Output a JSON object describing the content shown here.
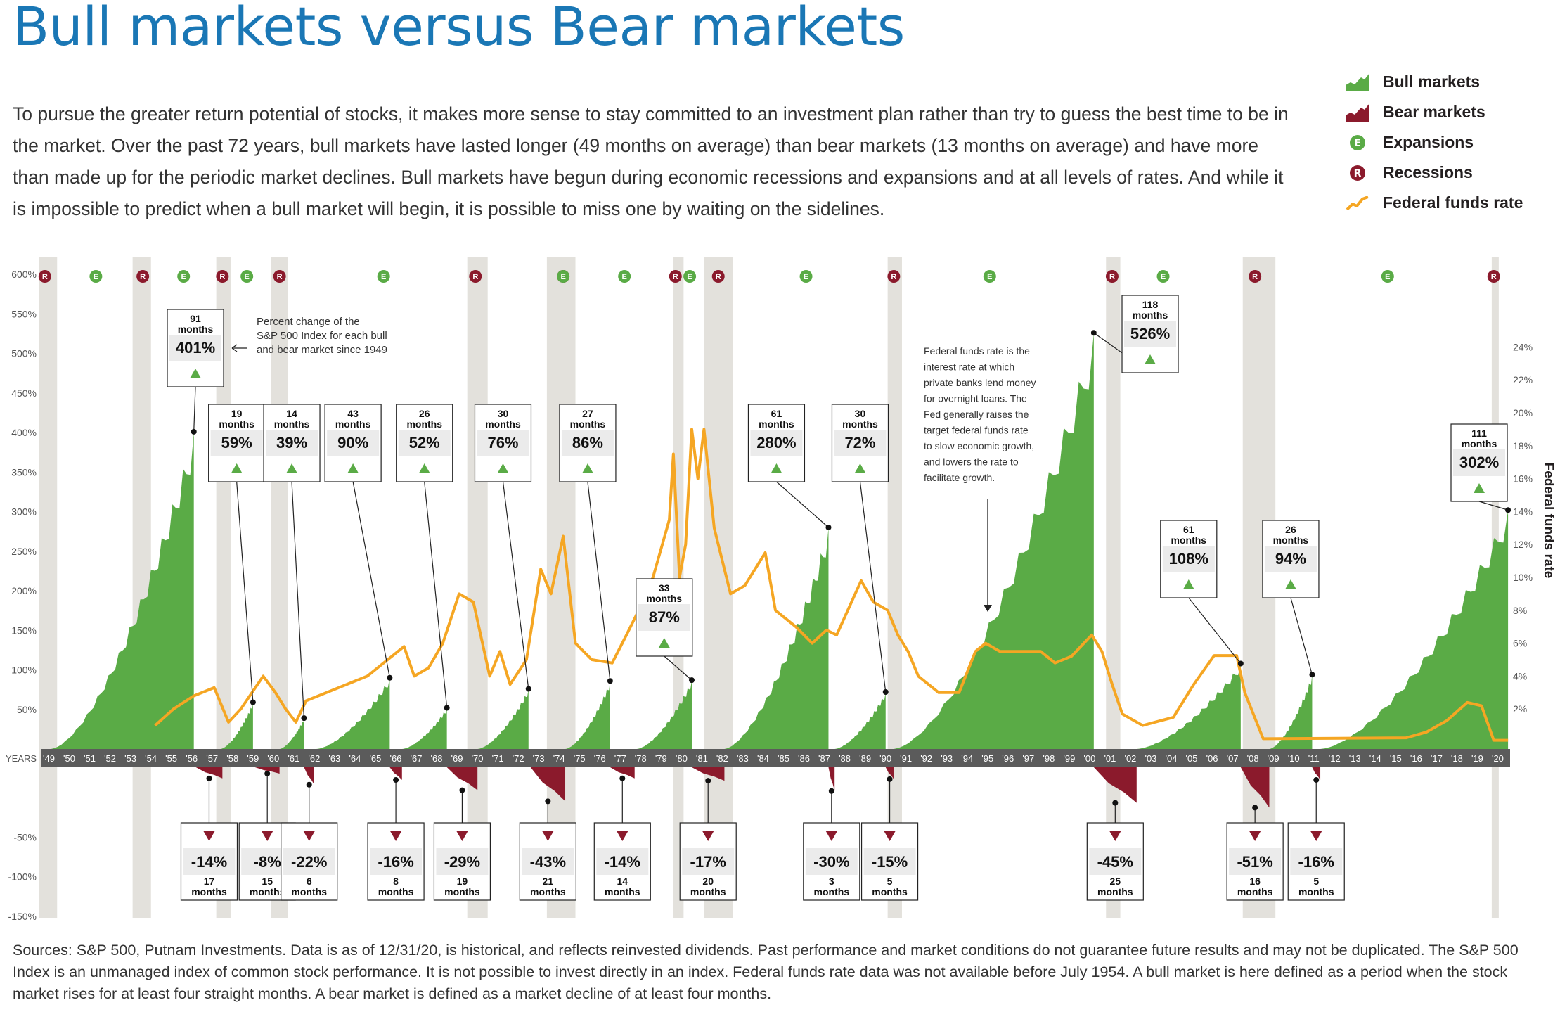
{
  "title": "Bull markets versus Bear markets",
  "intro": "To pursue the greater return potential of stocks, it makes more sense to stay committed to an investment plan rather than try to guess the best time to be in the market. Over the past 72 years, bull markets have lasted longer (49 months on average) than bear markets (13 months on average) and have more than made up for the periodic market declines. Bull markets have begun during economic recessions and expansions and at all levels of rates. And while it is impossible to predict when a bull market will begin, it is possible to miss one by waiting on the sidelines.",
  "legend": [
    {
      "label": "Bull markets",
      "icon": "bull-area-icon",
      "color": "#5aab46"
    },
    {
      "label": "Bear markets",
      "icon": "bear-area-icon",
      "color": "#8b1a2c"
    },
    {
      "label": "Expansions",
      "icon": "expansion-e-icon",
      "color": "#5aab46"
    },
    {
      "label": "Recessions",
      "icon": "recession-r-icon",
      "color": "#8b1a2c"
    },
    {
      "label": "Federal funds rate",
      "icon": "rate-line-icon",
      "color": "#f5a623"
    }
  ],
  "footer": "Sources: S&P 500, Putnam Investments. Data is as of 12/31/20, is historical, and reflects reinvested dividends. Past performance and market conditions do not guarantee future results and may not be duplicated. The S&P 500 Index is an unmanaged index of common stock performance. It is not possible to invest directly in an index. Federal funds rate data was not available before July 1954. A bull market is here defined as a period when the stock market rises for at least four straight months. A bear market is defined as a market decline of at least four months.",
  "chart_data": {
    "type": "area",
    "colors": {
      "bull": "#5aab46",
      "bear": "#8b1a2c",
      "rate": "#f5a623",
      "recession_band": "#e3e1dc",
      "axis_band": "#5b5b5b"
    },
    "left_axis": {
      "ticks": [
        "600%",
        "550%",
        "500%",
        "450%",
        "400%",
        "350%",
        "300%",
        "250%",
        "200%",
        "150%",
        "100%",
        "50%"
      ],
      "negative_ticks": [
        "-50%",
        "-100%",
        "-150%"
      ],
      "ylim": [
        -150,
        600
      ]
    },
    "right_axis": {
      "label": "Federal funds rate",
      "ticks": [
        "24%",
        "22%",
        "20%",
        "18%",
        "16%",
        "14%",
        "12%",
        "10%",
        "8%",
        "6%",
        "4%",
        "2%"
      ],
      "ylim": [
        0,
        24
      ]
    },
    "years_label": "YEARS",
    "years": [
      "'49",
      "'50",
      "'51",
      "'52",
      "'53",
      "'54",
      "'55",
      "'56",
      "'57",
      "'58",
      "'59",
      "'60",
      "'61",
      "'62",
      "'63",
      "'64",
      "'65",
      "'66",
      "'67",
      "'68",
      "'69",
      "'70",
      "'71",
      "'72",
      "'73",
      "'74",
      "'75",
      "'76",
      "'77",
      "'78",
      "'79",
      "'80",
      "'81",
      "'82",
      "'83",
      "'84",
      "'85",
      "'86",
      "'87",
      "'88",
      "'89",
      "'90",
      "'91",
      "'92",
      "'93",
      "'94",
      "'95",
      "'96",
      "'97",
      "'98",
      "'99",
      "'00",
      "'01",
      "'02",
      "'03",
      "'04",
      "'05",
      "'06",
      "'07",
      "'08",
      "'09",
      "'10",
      "'11",
      "'12",
      "'13",
      "'14",
      "'15",
      "'16",
      "'17",
      "'18",
      "'19",
      "'20"
    ],
    "recessions": [
      [
        1948.9,
        1949.8
      ],
      [
        1953.5,
        1954.4
      ],
      [
        1957.6,
        1958.3
      ],
      [
        1960.3,
        1961.1
      ],
      [
        1969.9,
        1970.9
      ],
      [
        1973.8,
        1975.2
      ],
      [
        1980.0,
        1980.5
      ],
      [
        1981.5,
        1982.9
      ],
      [
        1990.5,
        1991.2
      ],
      [
        2001.2,
        2001.9
      ],
      [
        2007.9,
        2009.5
      ],
      [
        2020.1,
        2020.4
      ]
    ],
    "recession_markers": [
      1949.2,
      1954.0,
      1957.9,
      1960.7,
      1970.3,
      1974.6,
      1980.1,
      1982.2,
      1990.8,
      2001.5,
      2008.5,
      2020.2
    ],
    "expansion_markers": [
      1951.7,
      1956.0,
      1959.1,
      1965.8,
      1974.6,
      1977.6,
      1986.5,
      1995.5,
      2004.0,
      2015.0,
      1980.8
    ],
    "bull_markets": [
      {
        "start": 1949.5,
        "end": 1956.5,
        "months": "91 months",
        "gain": "401%",
        "value": 401
      },
      {
        "start": 1957.8,
        "end": 1959.4,
        "months": "19 months",
        "gain": "59%",
        "value": 59
      },
      {
        "start": 1960.7,
        "end": 1961.9,
        "months": "14 months",
        "gain": "39%",
        "value": 39
      },
      {
        "start": 1962.5,
        "end": 1966.1,
        "months": "43 months",
        "gain": "90%",
        "value": 90
      },
      {
        "start": 1966.7,
        "end": 1968.9,
        "months": "26 months",
        "gain": "52%",
        "value": 52
      },
      {
        "start": 1970.4,
        "end": 1972.9,
        "months": "30 months",
        "gain": "76%",
        "value": 76
      },
      {
        "start": 1974.7,
        "end": 1976.9,
        "months": "27 months",
        "gain": "86%",
        "value": 86
      },
      {
        "start": 1978.2,
        "end": 1980.9,
        "months": "33 months",
        "gain": "87%",
        "value": 87
      },
      {
        "start": 1982.5,
        "end": 1987.6,
        "months": "61 months",
        "gain": "280%",
        "value": 280
      },
      {
        "start": 1987.9,
        "end": 1990.4,
        "months": "30 months",
        "gain": "72%",
        "value": 72
      },
      {
        "start": 1990.8,
        "end": 2000.6,
        "months": "118 months",
        "gain": "526%",
        "value": 526
      },
      {
        "start": 2002.7,
        "end": 2007.8,
        "months": "61 months",
        "gain": "108%",
        "value": 108
      },
      {
        "start": 2009.2,
        "end": 2011.3,
        "months": "26 months",
        "gain": "94%",
        "value": 94
      },
      {
        "start": 2011.7,
        "end": 2020.9,
        "months": "111 months",
        "gain": "302%",
        "value": 302
      }
    ],
    "bear_markets": [
      {
        "start": 1956.6,
        "end": 1957.9,
        "months": "17 months",
        "loss": "-14%",
        "value": -14
      },
      {
        "start": 1959.5,
        "end": 1960.7,
        "months": "15 months",
        "loss": "-8%",
        "value": -8
      },
      {
        "start": 1961.9,
        "end": 1962.4,
        "months": "6 months",
        "loss": "-22%",
        "value": -22
      },
      {
        "start": 1966.1,
        "end": 1966.7,
        "months": "8 months",
        "loss": "-16%",
        "value": -16
      },
      {
        "start": 1968.9,
        "end": 1970.4,
        "months": "19 months",
        "loss": "-29%",
        "value": -29
      },
      {
        "start": 1973.0,
        "end": 1974.7,
        "months": "21 months",
        "loss": "-43%",
        "value": -43
      },
      {
        "start": 1976.9,
        "end": 1978.1,
        "months": "14 months",
        "loss": "-14%",
        "value": -14
      },
      {
        "start": 1980.9,
        "end": 1982.5,
        "months": "20 months",
        "loss": "-17%",
        "value": -17
      },
      {
        "start": 1987.6,
        "end": 1987.9,
        "months": "3 months",
        "loss": "-30%",
        "value": -30
      },
      {
        "start": 1990.4,
        "end": 1990.8,
        "months": "5 months",
        "loss": "-15%",
        "value": -15
      },
      {
        "start": 2000.6,
        "end": 2002.7,
        "months": "25 months",
        "loss": "-45%",
        "value": -45
      },
      {
        "start": 2007.8,
        "end": 2009.2,
        "months": "16 months",
        "loss": "-51%",
        "value": -51
      },
      {
        "start": 2011.3,
        "end": 2011.7,
        "months": "5 months",
        "loss": "-16%",
        "value": -16
      }
    ],
    "fed_funds_rate": [
      [
        1954.6,
        1.0
      ],
      [
        1955.5,
        2.0
      ],
      [
        1956.5,
        2.8
      ],
      [
        1957.5,
        3.3
      ],
      [
        1958.2,
        1.2
      ],
      [
        1958.8,
        2.0
      ],
      [
        1959.9,
        4.0
      ],
      [
        1960.5,
        3.0
      ],
      [
        1961.0,
        2.0
      ],
      [
        1961.5,
        1.2
      ],
      [
        1962.0,
        2.5
      ],
      [
        1963.0,
        3.0
      ],
      [
        1964.0,
        3.5
      ],
      [
        1965.0,
        4.0
      ],
      [
        1966.0,
        5.0
      ],
      [
        1966.8,
        5.8
      ],
      [
        1967.3,
        4.0
      ],
      [
        1968.0,
        4.5
      ],
      [
        1968.7,
        6.0
      ],
      [
        1969.5,
        9.0
      ],
      [
        1970.2,
        8.5
      ],
      [
        1971.0,
        4.0
      ],
      [
        1971.5,
        5.5
      ],
      [
        1972.0,
        3.5
      ],
      [
        1972.8,
        5.0
      ],
      [
        1973.5,
        10.5
      ],
      [
        1974.0,
        9.0
      ],
      [
        1974.6,
        12.5
      ],
      [
        1975.2,
        6.0
      ],
      [
        1976.0,
        5.0
      ],
      [
        1977.0,
        4.8
      ],
      [
        1977.7,
        6.5
      ],
      [
        1978.5,
        8.5
      ],
      [
        1979.0,
        10.0
      ],
      [
        1979.8,
        13.5
      ],
      [
        1980.0,
        17.5
      ],
      [
        1980.3,
        10.0
      ],
      [
        1980.6,
        12.0
      ],
      [
        1980.9,
        19.0
      ],
      [
        1981.2,
        16.0
      ],
      [
        1981.5,
        19.0
      ],
      [
        1982.0,
        13.0
      ],
      [
        1982.8,
        9.0
      ],
      [
        1983.5,
        9.5
      ],
      [
        1984.5,
        11.5
      ],
      [
        1985.0,
        8.0
      ],
      [
        1986.0,
        7.0
      ],
      [
        1986.8,
        6.0
      ],
      [
        1987.5,
        6.8
      ],
      [
        1988.0,
        6.5
      ],
      [
        1989.2,
        9.8
      ],
      [
        1989.8,
        8.5
      ],
      [
        1990.5,
        8.0
      ],
      [
        1991.0,
        6.5
      ],
      [
        1991.5,
        5.5
      ],
      [
        1992.0,
        4.0
      ],
      [
        1993.0,
        3.0
      ],
      [
        1994.0,
        3.0
      ],
      [
        1994.8,
        5.5
      ],
      [
        1995.3,
        6.0
      ],
      [
        1996.0,
        5.5
      ],
      [
        1997.0,
        5.5
      ],
      [
        1998.0,
        5.5
      ],
      [
        1998.7,
        4.8
      ],
      [
        1999.5,
        5.2
      ],
      [
        2000.5,
        6.5
      ],
      [
        2001.0,
        5.5
      ],
      [
        2001.5,
        3.5
      ],
      [
        2002.0,
        1.7
      ],
      [
        2003.0,
        1.0
      ],
      [
        2004.5,
        1.5
      ],
      [
        2005.5,
        3.5
      ],
      [
        2006.5,
        5.25
      ],
      [
        2007.6,
        5.25
      ],
      [
        2008.0,
        3.0
      ],
      [
        2008.9,
        0.2
      ],
      [
        2015.9,
        0.25
      ],
      [
        2016.9,
        0.6
      ],
      [
        2017.9,
        1.3
      ],
      [
        2018.9,
        2.4
      ],
      [
        2019.6,
        2.2
      ],
      [
        2020.2,
        0.1
      ],
      [
        2020.9,
        0.1
      ]
    ],
    "annotations": [
      "Percent change of the S&P 500 Index for each bull and bear market since 1949",
      "Federal funds rate is the interest rate at which private banks lend money for overnight loans. The Fed generally raises the target federal funds rate to slow economic growth, and lowers the rate to facilitate growth."
    ]
  }
}
